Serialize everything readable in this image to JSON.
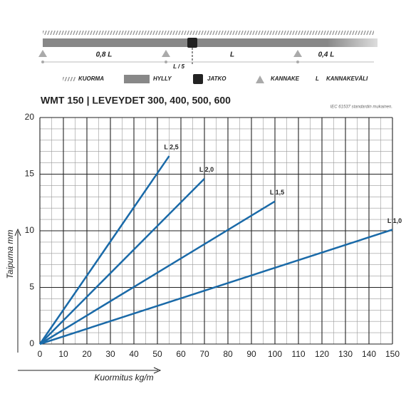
{
  "diagram": {
    "spans": [
      "0,8 L",
      "L",
      "0,4 L"
    ],
    "joint_label": "L / 5",
    "legend": [
      "KUORMA",
      "HYLLY",
      "JATKO",
      "KANNAKE"
    ],
    "legend_span": {
      "symbol": "L",
      "label": "KANNAKEVÄLI"
    }
  },
  "chart_data": {
    "type": "line",
    "title": "WMT 150  |  LEVEYDET 300, 400, 500, 600",
    "note": "IEC 61537 standardin mukainen.",
    "x_label": "Kuormitus kg/m",
    "y_label": "Taipuma mm",
    "xlim": [
      0,
      150
    ],
    "xticks": [
      0,
      10,
      20,
      30,
      40,
      50,
      60,
      70,
      80,
      90,
      100,
      110,
      120,
      130,
      140,
      150
    ],
    "ylim": [
      0,
      20
    ],
    "yticks": [
      0,
      5,
      10,
      15,
      20
    ],
    "grid": {
      "x_step": 5,
      "y_step": 1
    },
    "series": [
      {
        "name": "L 2,5",
        "color": "#1a6aa8",
        "x": [
          0,
          55
        ],
        "values": [
          0,
          16.6
        ]
      },
      {
        "name": "L 2,0",
        "color": "#1a6aa8",
        "x": [
          0,
          70
        ],
        "values": [
          0,
          14.6
        ]
      },
      {
        "name": "L 1,5",
        "color": "#1a6aa8",
        "x": [
          0,
          100
        ],
        "values": [
          0,
          12.6
        ]
      },
      {
        "name": "L 1,0",
        "color": "#1a6aa8",
        "x": [
          0,
          150
        ],
        "values": [
          0,
          10.1
        ]
      }
    ]
  }
}
